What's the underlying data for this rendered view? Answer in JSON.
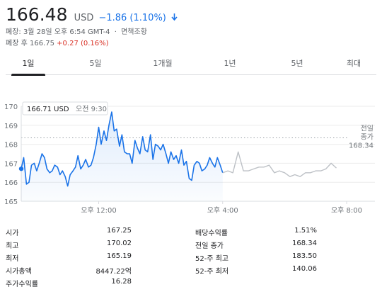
{
  "quote": {
    "price": "166.48",
    "currency": "USD",
    "change": "−1.86 (1.10%)",
    "change_color": "#1a73e8",
    "direction_icon": "arrow-down-icon"
  },
  "meta": {
    "close_time": "폐장: 3월 28일 오후 6:54 GMT-4",
    "separator": "·",
    "disclaimer": "면책조항"
  },
  "after_hours": {
    "label": "폐장 후",
    "price": "166.75",
    "change": "+0.27 (0.16%)",
    "change_color": "#d93025"
  },
  "tabs": [
    {
      "label": "1일",
      "active": true
    },
    {
      "label": "5일",
      "active": false
    },
    {
      "label": "1개월",
      "active": false
    },
    {
      "label": "1년",
      "active": false
    },
    {
      "label": "5년",
      "active": false
    },
    {
      "label": "최대",
      "active": false
    }
  ],
  "chart_data": {
    "type": "line",
    "ylim": [
      165,
      170
    ],
    "y_ticks": [
      "165",
      "166",
      "167",
      "168",
      "169",
      "170"
    ],
    "x_ticks": [
      {
        "label": "오후 12:00",
        "hour": 12.0
      },
      {
        "label": "오후 4:00",
        "hour": 16.0
      },
      {
        "label": "오후 8:00",
        "hour": 20.0
      }
    ],
    "xlim": [
      9.5,
      20.0
    ],
    "previous_close": {
      "label_line1": "전일",
      "label_line2": "종가",
      "value": "168.34",
      "y": 168.34
    },
    "tooltip": {
      "price": "166.71 USD",
      "time": "오전 9:30"
    },
    "series": [
      {
        "session": "regular",
        "color": "#1a73e8",
        "x": [
          9.5,
          9.58,
          9.67,
          9.75,
          9.83,
          9.92,
          10.0,
          10.08,
          10.17,
          10.25,
          10.33,
          10.42,
          10.5,
          10.58,
          10.67,
          10.75,
          10.83,
          10.92,
          11.0,
          11.08,
          11.17,
          11.25,
          11.33,
          11.42,
          11.5,
          11.58,
          11.67,
          11.75,
          11.83,
          11.92,
          12.0,
          12.08,
          12.17,
          12.25,
          12.33,
          12.42,
          12.5,
          12.58,
          12.67,
          12.75,
          12.83,
          12.92,
          13.0,
          13.08,
          13.17,
          13.25,
          13.33,
          13.42,
          13.5,
          13.58,
          13.67,
          13.75,
          13.83,
          13.92,
          14.0,
          14.08,
          14.17,
          14.25,
          14.33,
          14.42,
          14.5,
          14.58,
          14.67,
          14.75,
          14.83,
          14.92,
          15.0,
          15.08,
          15.17,
          15.25,
          15.33,
          15.42,
          15.5,
          15.58,
          15.67,
          15.75,
          15.83,
          15.92,
          16.0
        ],
        "y": [
          166.71,
          167.3,
          165.9,
          166.0,
          166.9,
          167.0,
          166.6,
          167.0,
          167.5,
          167.3,
          166.7,
          166.5,
          166.6,
          166.9,
          166.8,
          166.4,
          166.6,
          166.3,
          165.8,
          166.4,
          166.6,
          166.8,
          167.4,
          166.7,
          166.9,
          167.2,
          166.8,
          166.9,
          167.3,
          168.0,
          168.9,
          168.0,
          168.7,
          168.2,
          169.0,
          169.7,
          168.7,
          168.8,
          167.9,
          168.5,
          167.6,
          167.5,
          167.5,
          167.0,
          168.2,
          167.8,
          167.5,
          168.4,
          167.7,
          167.6,
          168.5,
          167.2,
          168.0,
          167.9,
          167.7,
          168.0,
          167.5,
          167.0,
          167.6,
          167.2,
          167.4,
          167.0,
          167.7,
          166.9,
          167.1,
          166.2,
          166.1,
          166.9,
          167.1,
          167.0,
          166.6,
          166.7,
          166.9,
          167.3,
          167.0,
          166.8,
          167.3,
          166.9,
          166.5
        ]
      },
      {
        "session": "after-hours",
        "color": "#bdc1c6",
        "x": [
          16.0,
          16.17,
          16.33,
          16.5,
          16.67,
          16.83,
          17.0,
          17.17,
          17.33,
          17.5,
          17.67,
          17.83,
          18.0,
          18.17,
          18.33,
          18.5,
          18.67,
          18.83,
          19.0,
          19.17,
          19.33,
          19.5,
          19.67
        ],
        "y": [
          166.5,
          166.6,
          166.5,
          167.6,
          166.6,
          166.6,
          166.7,
          166.8,
          166.8,
          166.9,
          166.5,
          166.6,
          166.5,
          166.3,
          166.4,
          166.3,
          166.5,
          166.5,
          166.6,
          166.6,
          166.7,
          167.0,
          166.75
        ]
      }
    ]
  },
  "stats_left": [
    {
      "key": "시가",
      "value": "167.25"
    },
    {
      "key": "최고",
      "value": "170.02"
    },
    {
      "key": "최저",
      "value": "165.19"
    },
    {
      "key": "시가총액",
      "value": "8447.22억"
    },
    {
      "key": "주가수익률",
      "value": "16.28"
    }
  ],
  "stats_right": [
    {
      "key": "배당수익률",
      "value": "1.51%"
    },
    {
      "key": "전일 종가",
      "value": "168.34"
    },
    {
      "key": "52-주 최고",
      "value": "183.50"
    },
    {
      "key": "52-주 최저",
      "value": "140.06"
    }
  ]
}
